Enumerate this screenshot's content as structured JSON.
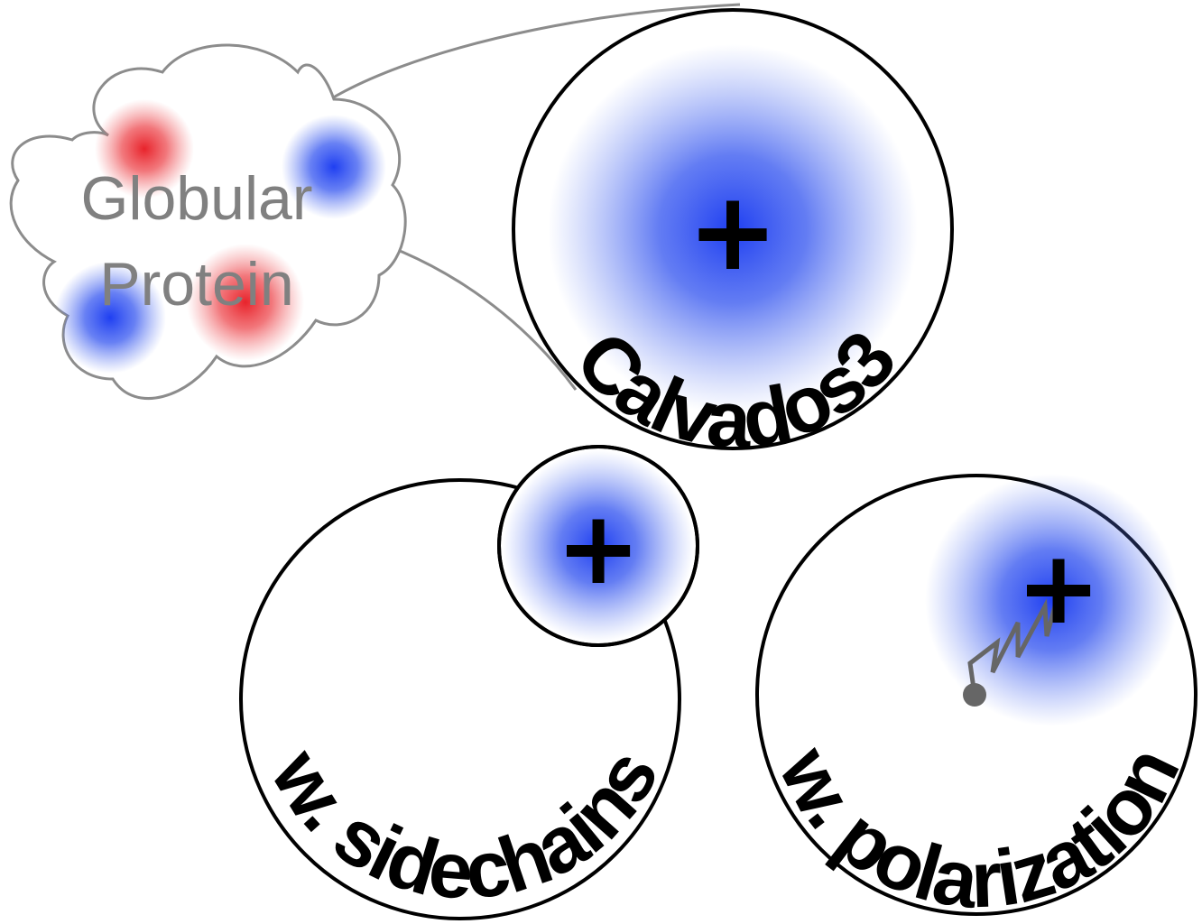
{
  "cloud": {
    "line1": "Globular",
    "line2": "Protein"
  },
  "models": {
    "calvados": "Calvados3",
    "sidechains": "w. sidechains",
    "polarization": "w. polarization"
  },
  "charge_symbol": "+",
  "colors": {
    "positive": "#1f3ff2",
    "negative": "#e8232b",
    "outline": "#000000",
    "cloud_outline": "#8c8c8c",
    "cloud_text": "#808080",
    "spring": "#666666"
  }
}
